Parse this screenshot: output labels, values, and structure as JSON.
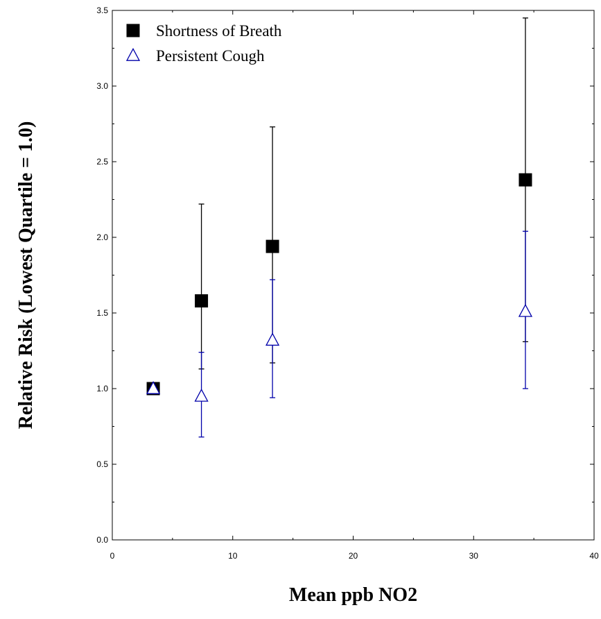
{
  "chart_data": {
    "type": "scatter",
    "xlabel": "Mean ppb NO2",
    "ylabel": "Relative Risk (Lowest Quartile = 1.0)",
    "xlim": [
      0,
      40
    ],
    "ylim": [
      0.0,
      3.5
    ],
    "x_ticks": [
      "0",
      "10",
      "20",
      "30",
      "40"
    ],
    "y_ticks": [
      "0.0",
      "0.5",
      "1.0",
      "1.5",
      "2.0",
      "2.5",
      "3.0",
      "3.5"
    ],
    "grid": false,
    "legend_position": "top-left",
    "series": [
      {
        "name": "Shortness of Breath",
        "marker": "filled-square",
        "color": "#000000",
        "points": [
          {
            "x": 3.4,
            "y": 1.0,
            "lower": null,
            "upper": null
          },
          {
            "x": 7.4,
            "y": 1.58,
            "lower": 1.13,
            "upper": 2.22
          },
          {
            "x": 13.3,
            "y": 1.94,
            "lower": 1.17,
            "upper": 2.73
          },
          {
            "x": 34.3,
            "y": 2.38,
            "lower": 1.31,
            "upper": 3.45
          }
        ]
      },
      {
        "name": "Persistent Cough",
        "marker": "open-triangle",
        "color": "#0000aa",
        "points": [
          {
            "x": 3.4,
            "y": 1.0,
            "lower": null,
            "upper": null
          },
          {
            "x": 7.4,
            "y": 0.95,
            "lower": 0.68,
            "upper": 1.24
          },
          {
            "x": 13.3,
            "y": 1.32,
            "lower": 0.94,
            "upper": 1.72
          },
          {
            "x": 34.3,
            "y": 1.51,
            "lower": 1.0,
            "upper": 2.04
          }
        ]
      }
    ]
  }
}
